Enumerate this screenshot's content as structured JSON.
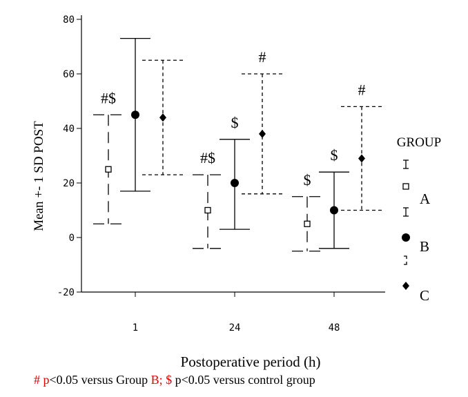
{
  "chart_data": {
    "type": "errorbar",
    "xlabel": "Postoperative period (h)",
    "ylabel": "Mean +- 1 SD POST",
    "ylim": [
      -20,
      80
    ],
    "yticks": [
      "-20",
      "0",
      "20",
      "40",
      "60",
      "80"
    ],
    "ytick_values": [
      -20,
      0,
      20,
      40,
      60,
      80
    ],
    "categories": [
      "1",
      "24",
      "48"
    ],
    "legend": {
      "title": "GROUP",
      "placement": "right"
    },
    "series": [
      {
        "name": "A",
        "marker": "open-square",
        "line": "long-dash",
        "points": [
          {
            "x": "1",
            "mean": 25,
            "lower": 5,
            "upper": 45,
            "annotation": "#$"
          },
          {
            "x": "24",
            "mean": 10,
            "lower": -4,
            "upper": 23,
            "annotation": "#$"
          },
          {
            "x": "48",
            "mean": 5,
            "lower": -5,
            "upper": 15,
            "annotation": "$"
          }
        ]
      },
      {
        "name": "B",
        "marker": "filled-circle",
        "line": "solid",
        "points": [
          {
            "x": "1",
            "mean": 45,
            "lower": 17,
            "upper": 73,
            "annotation": ""
          },
          {
            "x": "24",
            "mean": 20,
            "lower": 3,
            "upper": 36,
            "annotation": "$"
          },
          {
            "x": "48",
            "mean": 10,
            "lower": -4,
            "upper": 24,
            "annotation": "$"
          }
        ]
      },
      {
        "name": "C",
        "marker": "filled-diamond",
        "line": "short-dash",
        "points": [
          {
            "x": "1",
            "mean": 44,
            "lower": 23,
            "upper": 65,
            "annotation": ""
          },
          {
            "x": "24",
            "mean": 38,
            "lower": 16,
            "upper": 60,
            "annotation": "#"
          },
          {
            "x": "48",
            "mean": 29,
            "lower": 10,
            "upper": 48,
            "annotation": "#"
          }
        ]
      }
    ]
  },
  "footnote": {
    "part1_red": "# p",
    "part2": "<0.05 versus Group ",
    "part3_red": "B; $",
    "part4": " p<0.05 versus control group"
  }
}
